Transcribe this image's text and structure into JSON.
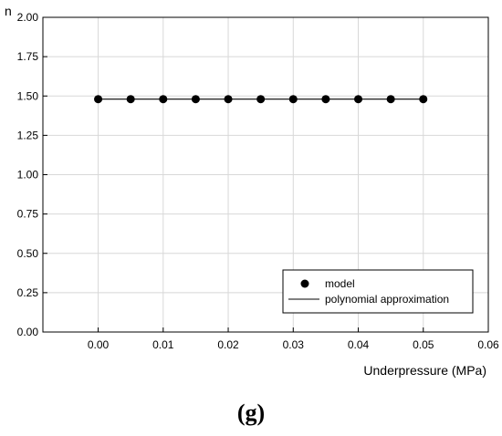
{
  "chart_data": {
    "type": "line",
    "xlabel": "Underpressure (MPa)",
    "ylabel": "n",
    "xlim": [
      -0.0085,
      0.06
    ],
    "ylim": [
      0.0,
      2.0
    ],
    "x_ticks": [
      "0.00",
      "0.01",
      "0.02",
      "0.03",
      "0.04",
      "0.05",
      "0.06"
    ],
    "y_ticks": [
      "0.00",
      "0.25",
      "0.50",
      "0.75",
      "1.00",
      "1.25",
      "1.50",
      "1.75",
      "2.00"
    ],
    "grid": true,
    "legend_position": "bottom-right",
    "series": [
      {
        "name": "model",
        "style": "markers",
        "color": "#000000",
        "x": [
          0.0,
          0.005,
          0.01,
          0.015,
          0.02,
          0.025,
          0.03,
          0.035,
          0.04,
          0.045,
          0.05
        ],
        "y": [
          1.48,
          1.48,
          1.48,
          1.48,
          1.48,
          1.48,
          1.48,
          1.48,
          1.48,
          1.48,
          1.48
        ]
      },
      {
        "name": "polynomial approximation",
        "style": "line",
        "color": "#000000",
        "x": [
          0.0,
          0.05
        ],
        "y": [
          1.48,
          1.48
        ]
      }
    ]
  },
  "panel_label": "(g)"
}
